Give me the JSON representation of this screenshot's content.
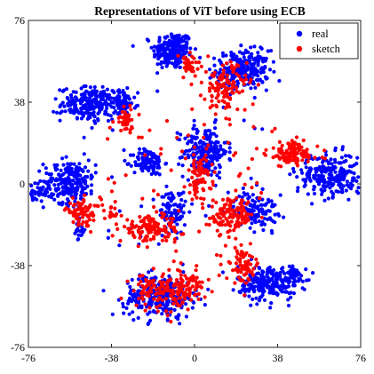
{
  "chart_data": {
    "type": "scatter",
    "title": "Representations of ViT before using ECB",
    "xlabel": "",
    "ylabel": "",
    "xlim": [
      -76,
      76
    ],
    "ylim": [
      -76,
      76
    ],
    "x_ticks": [
      -76,
      -38,
      0,
      38,
      76
    ],
    "y_ticks": [
      -76,
      -38,
      0,
      38,
      76
    ],
    "grid": false,
    "legend_position": "top-right",
    "series": [
      {
        "name": "real",
        "color": "#0000ff",
        "clusters": [
          {
            "cx": -10,
            "cy": 62,
            "sx": 4.5,
            "sy": 4.5,
            "n": 220
          },
          {
            "cx": 22,
            "cy": 53,
            "sx": 6,
            "sy": 4.5,
            "n": 240
          },
          {
            "cx": -47,
            "cy": 37,
            "sx": 7,
            "sy": 4,
            "n": 230
          },
          {
            "cx": -33,
            "cy": 38,
            "sx": 3,
            "sy": 3,
            "n": 60
          },
          {
            "cx": 5,
            "cy": 15,
            "sx": 5,
            "sy": 6,
            "n": 200
          },
          {
            "cx": -21,
            "cy": 10,
            "sx": 3.5,
            "sy": 3,
            "n": 110
          },
          {
            "cx": -57,
            "cy": 1,
            "sx": 6,
            "sy": 5,
            "n": 230
          },
          {
            "cx": -72,
            "cy": -4,
            "sx": 2.5,
            "sy": 1.5,
            "n": 30
          },
          {
            "cx": -53,
            "cy": -22,
            "sx": 1.5,
            "sy": 2.5,
            "n": 18
          },
          {
            "cx": 63,
            "cy": 4,
            "sx": 8,
            "sy": 5,
            "n": 260
          },
          {
            "cx": -10,
            "cy": -13,
            "sx": 3,
            "sy": 5,
            "n": 90
          },
          {
            "cx": 28,
            "cy": -12,
            "sx": 5,
            "sy": 4,
            "n": 110
          },
          {
            "cx": 34,
            "cy": -46,
            "sx": 7,
            "sy": 4,
            "n": 230
          },
          {
            "cx": 46,
            "cy": -42,
            "sx": 2,
            "sy": 2,
            "n": 30
          },
          {
            "cx": -16,
            "cy": -52,
            "sx": 8,
            "sy": 5,
            "n": 280
          }
        ],
        "scatter": {
          "n": 40,
          "xlim": [
            -40,
            40
          ],
          "ylim": [
            -30,
            30
          ]
        }
      },
      {
        "name": "sketch",
        "color": "#ff0000",
        "clusters": [
          {
            "cx": -3,
            "cy": 55,
            "sx": 3,
            "sy": 3,
            "n": 40
          },
          {
            "cx": 14,
            "cy": 45,
            "sx": 5,
            "sy": 6,
            "n": 120
          },
          {
            "cx": -31,
            "cy": 30,
            "sx": 2.5,
            "sy": 3,
            "n": 40
          },
          {
            "cx": 2,
            "cy": 3,
            "sx": 3,
            "sy": 5,
            "n": 70
          },
          {
            "cx": 45,
            "cy": 14,
            "sx": 6,
            "sy": 3,
            "n": 110
          },
          {
            "cx": -51,
            "cy": -13,
            "sx": 4,
            "sy": 3,
            "n": 80
          },
          {
            "cx": -20,
            "cy": -21,
            "sx": 7,
            "sy": 3,
            "n": 130
          },
          {
            "cx": -38,
            "cy": -14,
            "sx": 1.5,
            "sy": 1.5,
            "n": 12
          },
          {
            "cx": 17,
            "cy": -15,
            "sx": 5,
            "sy": 4,
            "n": 120
          },
          {
            "cx": 22,
            "cy": -38,
            "sx": 4,
            "sy": 4,
            "n": 70
          },
          {
            "cx": -5,
            "cy": -48,
            "sx": 5,
            "sy": 4,
            "n": 100
          },
          {
            "cx": -17,
            "cy": -50,
            "sx": 6,
            "sy": 4,
            "n": 90
          }
        ],
        "scatter": {
          "n": 60,
          "xlim": [
            -40,
            40
          ],
          "ylim": [
            -25,
            30
          ]
        }
      }
    ]
  }
}
